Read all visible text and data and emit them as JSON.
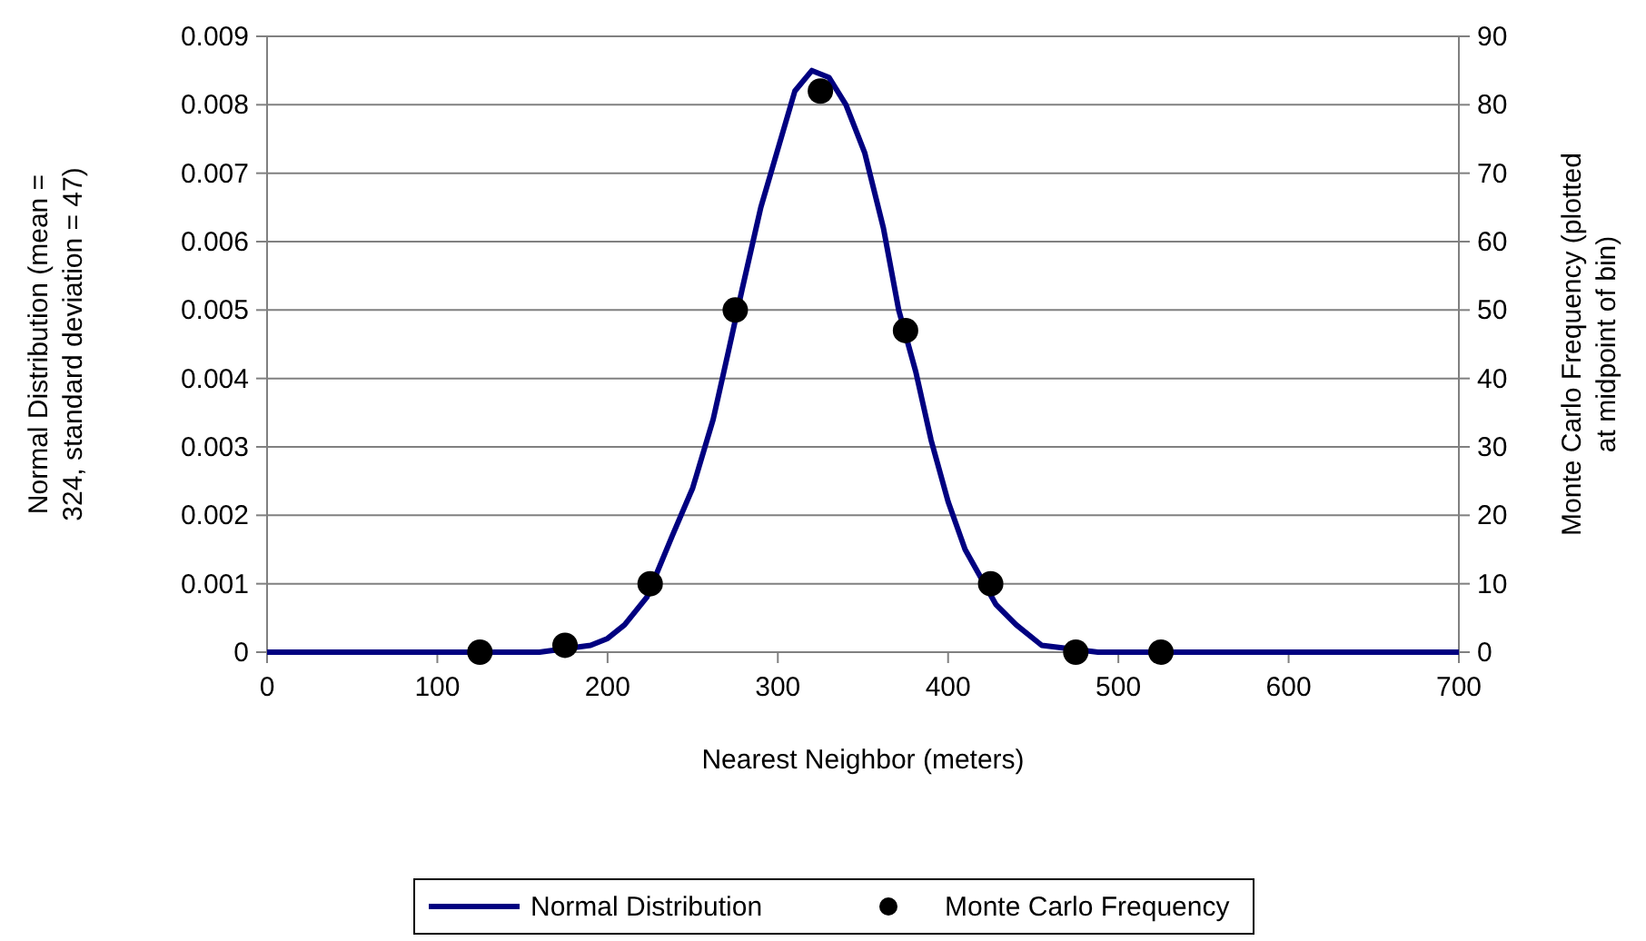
{
  "chart_data": {
    "type": "line",
    "xlabel": "Nearest Neighbor (meters)",
    "ylabel": "Normal Distribution (mean =\n324, standard deviation = 47)",
    "y2label": "Monte Carlo Frequency (plotted\nat midpoint of bin)",
    "xlim": [
      0,
      700
    ],
    "xticks": [
      0,
      100,
      200,
      300,
      400,
      500,
      600,
      700
    ],
    "ylim": [
      0,
      0.009
    ],
    "yticks": [
      0,
      0.001,
      0.002,
      0.003,
      0.004,
      0.005,
      0.006,
      0.007,
      0.008,
      0.009
    ],
    "y2lim": [
      0,
      90
    ],
    "y2ticks": [
      0,
      10,
      20,
      30,
      40,
      50,
      60,
      70,
      80,
      90
    ],
    "grid": "y",
    "legend": "bottom",
    "series": [
      {
        "name": "Normal Distribution",
        "color": "#000080",
        "marker": "none",
        "x": [
          0,
          160,
          190,
          200,
          210,
          223,
          238,
          250,
          262,
          271,
          279,
          290,
          310,
          320,
          330,
          340,
          351,
          362,
          371,
          381,
          390,
          400,
          410,
          428,
          440,
          455,
          488,
          700
        ],
        "values": [
          0,
          0,
          0.0001,
          0.0002,
          0.0004,
          0.0008,
          0.0017,
          0.0024,
          0.0034,
          0.0044,
          0.0053,
          0.0065,
          0.0082,
          0.0085,
          0.0084,
          0.008,
          0.0073,
          0.0062,
          0.005,
          0.0041,
          0.0031,
          0.0022,
          0.0015,
          0.0007,
          0.0004,
          0.0001,
          0,
          0
        ]
      },
      {
        "name": "Monte Carlo Frequency",
        "type": "scatter",
        "axis": "y2",
        "color": "#000000",
        "marker": "circle",
        "x": [
          125,
          175,
          225,
          275,
          325,
          375,
          425,
          475,
          525
        ],
        "values": [
          0,
          1,
          10,
          50,
          82,
          47,
          10,
          0,
          0
        ]
      }
    ]
  }
}
